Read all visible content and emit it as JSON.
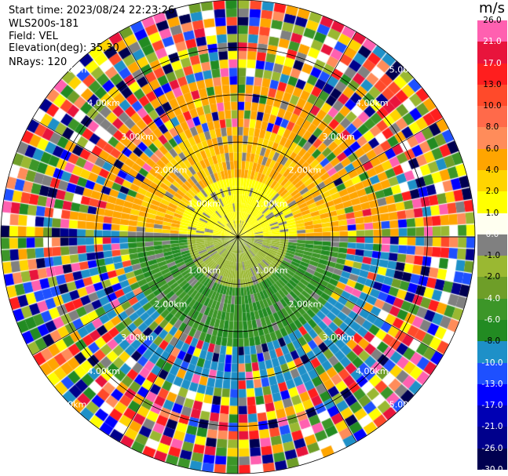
{
  "header": {
    "start_time": "Start time: 2023/08/24 22:23:26",
    "instrument": "WLS200s-181",
    "field": "Field: VEL",
    "elevation": "Elevation(deg): 35.30",
    "nrays": "NRays: 120"
  },
  "colorbar": {
    "units": "m/s",
    "labels": [
      "26.0",
      "21.0",
      "17.0",
      "13.0",
      "10.0",
      "8.0",
      "6.0",
      "4.0",
      "2.0",
      "1.0",
      "0.0",
      "-1.0",
      "-2.0",
      "-4.0",
      "-6.0",
      "-8.0",
      "-10.0",
      "-13.0",
      "-17.0",
      "-21.0",
      "-26.0",
      "-30.0"
    ],
    "colors": [
      "#ff60b0",
      "#e8143c",
      "#ff1e1e",
      "#ff4a2a",
      "#ff6a4a",
      "#ff8c5a",
      "#ffa500",
      "#ffd400",
      "#ffff00",
      "#fffff0",
      "#808080",
      "#9ab832",
      "#6e9e28",
      "#3c9628",
      "#228b22",
      "#1e90c8",
      "#1e50ff",
      "#0000ff",
      "#0000b4",
      "#00008c",
      "#000050"
    ]
  },
  "ring_labels": [
    "1.00km",
    "2.00km",
    "3.00km",
    "4.00km",
    "5.00km"
  ],
  "ppi": {
    "range_rings_km": [
      1,
      2,
      3,
      4,
      5
    ],
    "max_range_km": 5.0,
    "gate_count": 28,
    "clean_range_km": 2.3,
    "shade_speckle_range_km": 3.4
  }
}
